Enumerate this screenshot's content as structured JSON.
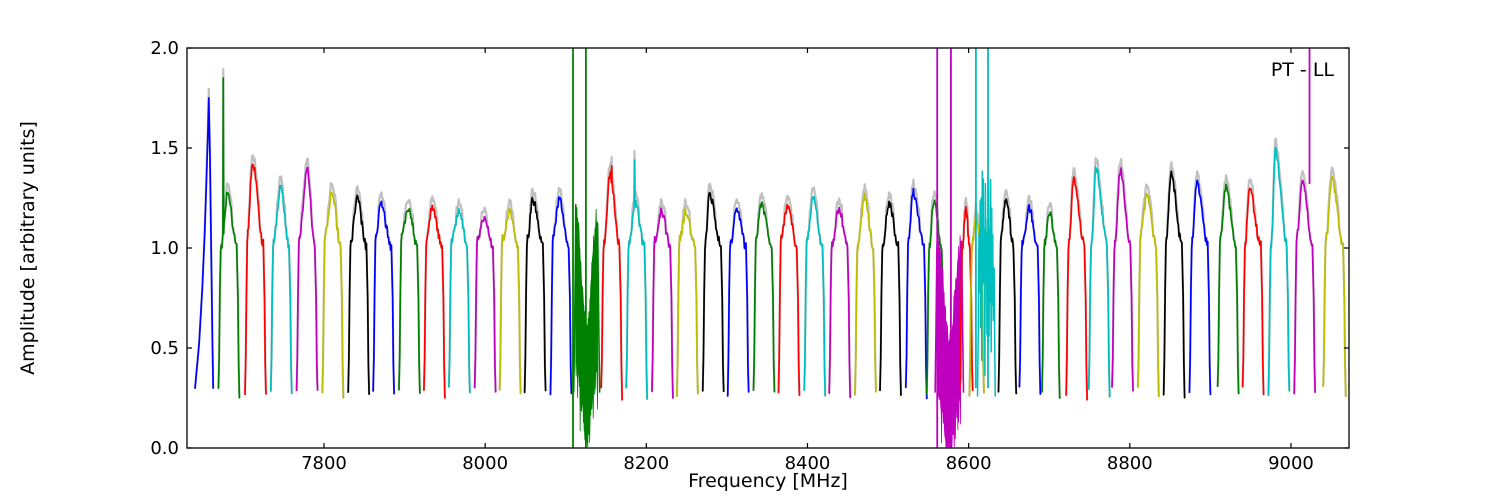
{
  "figure": {
    "corner_label": "PT - LL",
    "background": "#ffffff"
  },
  "chart_data": {
    "type": "line",
    "title": "",
    "corner_label": "PT - LL",
    "xlabel": "Frequency [MHz]",
    "ylabel": "Amplitude [arbitrary units]",
    "xlim": [
      7630,
      9072
    ],
    "ylim": [
      0.0,
      2.0
    ],
    "xticks": [
      7800,
      8000,
      8200,
      8400,
      8600,
      8800,
      9000
    ],
    "yticks": [
      0.0,
      0.5,
      1.0,
      1.5,
      2.0
    ],
    "grid": false,
    "legend": "none",
    "colors": {
      "b": "#0000ff",
      "g": "#008000",
      "r": "#ff0000",
      "c": "#00bfbf",
      "m": "#bf00bf",
      "y": "#bfbf00",
      "k": "#000000",
      "shadow": "#c0c0c0",
      "frame": "#000000"
    },
    "bands": [
      {
        "f": 7657,
        "c": "b",
        "p": 1.75,
        "t": "ramp"
      },
      {
        "f": 7682,
        "c": "g",
        "p": 1.27,
        "sp": 1.85,
        "st": 0.15
      },
      {
        "f": 7715,
        "c": "r",
        "p": 1.43,
        "tp": 0.3
      },
      {
        "f": 7747,
        "c": "c",
        "p": 1.3,
        "tp": 0.45
      },
      {
        "f": 7779,
        "c": "m",
        "p": 1.39,
        "tp": 0.5
      },
      {
        "f": 7811,
        "c": "y",
        "p": 1.28,
        "tp": 0.45
      },
      {
        "f": 7843,
        "c": "k",
        "p": 1.25,
        "tp": 0.4
      },
      {
        "f": 7874,
        "c": "b",
        "p": 1.22,
        "tp": 0.3
      },
      {
        "f": 7906,
        "c": "g",
        "p": 1.2,
        "tp": 0.45
      },
      {
        "f": 7937,
        "c": "r",
        "p": 1.21,
        "tp": 0.35
      },
      {
        "f": 7968,
        "c": "c",
        "p": 1.18,
        "tp": 0.5
      },
      {
        "f": 8000,
        "c": "m",
        "p": 1.16,
        "tp": 0.45
      },
      {
        "f": 8031,
        "c": "y",
        "p": 1.18,
        "tp": 0.5
      },
      {
        "f": 8062,
        "c": "k",
        "p": 1.24,
        "tp": 0.35
      },
      {
        "f": 8094,
        "c": "b",
        "p": 1.24,
        "tp": 0.4
      },
      {
        "f": 8126,
        "c": "g",
        "t": "noise",
        "hiB": 1.21,
        "hiM": 0.58,
        "loB": 0.44,
        "loM": 0.07,
        "w": 13.5
      },
      {
        "f": 8157,
        "c": "r",
        "p": 1.37,
        "tp": 0.4,
        "sp": 1.41,
        "st": 0.5
      },
      {
        "f": 8188,
        "c": "c",
        "p": 1.22,
        "sp": 1.44,
        "st": 0.35
      },
      {
        "f": 8220,
        "c": "m",
        "p": 1.18,
        "tp": 0.45
      },
      {
        "f": 8251,
        "c": "y",
        "p": 1.18,
        "tp": 0.4
      },
      {
        "f": 8283,
        "c": "k",
        "p": 1.27,
        "tp": 0.25
      },
      {
        "f": 8314,
        "c": "b",
        "p": 1.2,
        "tp": 0.4
      },
      {
        "f": 8346,
        "c": "g",
        "p": 1.22,
        "tp": 0.35
      },
      {
        "f": 8377,
        "c": "r",
        "p": 1.22,
        "tp": 0.45
      },
      {
        "f": 8409,
        "c": "c",
        "p": 1.25,
        "tp": 0.4
      },
      {
        "f": 8440,
        "c": "m",
        "p": 1.2,
        "tp": 0.45
      },
      {
        "f": 8472,
        "c": "y",
        "p": 1.26,
        "tp": 0.45
      },
      {
        "f": 8503,
        "c": "k",
        "p": 1.23,
        "tp": 0.4
      },
      {
        "f": 8535,
        "c": "b",
        "p": 1.28,
        "tp": 0.3
      },
      {
        "f": 8559,
        "c": "g",
        "p": 1.23,
        "w": 11,
        "tp": 0.35
      },
      {
        "f": 8576,
        "c": "m",
        "t": "noise",
        "hiB": 1.07,
        "hiM": 0.52,
        "loB": 0.33,
        "loM": 0.01,
        "w": 15
      },
      {
        "f": 8597,
        "c": "r",
        "p": 1.2,
        "w": 8,
        "tp": 0.45
      },
      {
        "f": 8610,
        "c": "y",
        "p": 1.16,
        "w": 9,
        "tp": 0.4
      },
      {
        "f": 8623,
        "c": "c",
        "t": "jag",
        "w": 12
      },
      {
        "f": 8648,
        "c": "k",
        "p": 1.25,
        "w": 11,
        "tp": 0.4
      },
      {
        "f": 8676,
        "c": "b",
        "p": 1.2,
        "tp": 0.45
      },
      {
        "f": 8702,
        "c": "g",
        "p": 1.17,
        "w": 11,
        "tp": 0.4
      },
      {
        "f": 8734,
        "c": "r",
        "p": 1.35,
        "tp": 0.3
      },
      {
        "f": 8762,
        "c": "c",
        "p": 1.4,
        "tp": 0.3
      },
      {
        "f": 8791,
        "c": "m",
        "p": 1.39,
        "tp": 0.35
      },
      {
        "f": 8823,
        "c": "y",
        "p": 1.26,
        "tp": 0.4
      },
      {
        "f": 8855,
        "c": "k",
        "p": 1.37,
        "tp": 0.3
      },
      {
        "f": 8887,
        "c": "b",
        "p": 1.33,
        "tp": 0.3
      },
      {
        "f": 8922,
        "c": "g",
        "p": 1.3,
        "tp": 0.35
      },
      {
        "f": 8953,
        "c": "r",
        "p": 1.3,
        "tp": 0.25
      },
      {
        "f": 8985,
        "c": "c",
        "p": 1.49,
        "tp": 0.28
      },
      {
        "f": 9017,
        "c": "m",
        "p": 1.33,
        "tp": 0.35
      },
      {
        "f": 9054,
        "c": "y",
        "p": 1.34,
        "tp": 0.35,
        "w": 14
      }
    ],
    "vlines": [
      {
        "f": 8109,
        "c": "g",
        "a0": 0.0,
        "a1": 2.0
      },
      {
        "f": 8125,
        "c": "g",
        "a0": 0.0,
        "a1": 2.0
      },
      {
        "f": 8561,
        "c": "m",
        "a0": 0.0,
        "a1": 2.0
      },
      {
        "f": 8578,
        "c": "m",
        "a0": 0.0,
        "a1": 2.0
      },
      {
        "f": 8609,
        "c": "c",
        "a0": 0.3,
        "a1": 2.0
      },
      {
        "f": 8624,
        "c": "c",
        "a0": 0.3,
        "a1": 2.0
      },
      {
        "f": 9023,
        "c": "m",
        "a0": 1.32,
        "a1": 2.0
      }
    ]
  }
}
